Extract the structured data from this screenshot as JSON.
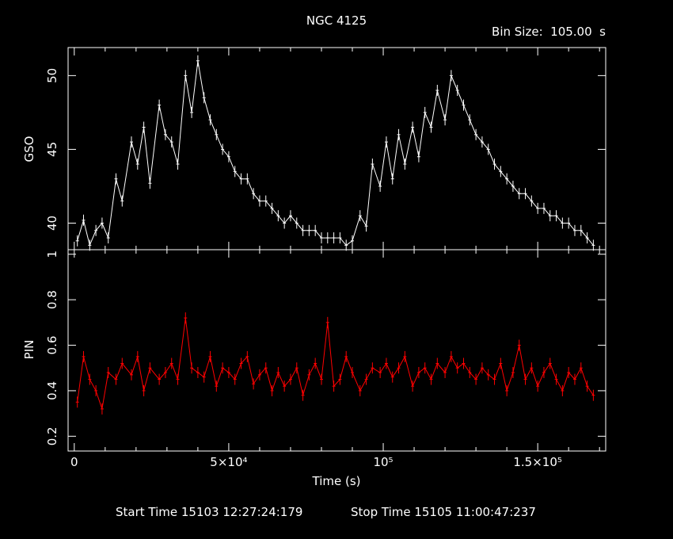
{
  "title": "NGC 4125",
  "bin_size_label": "Bin Size:  105.00  s",
  "xlabel": "Time (s)",
  "start_time_label": "Start Time 15103 12:27:24:179",
  "stop_time_label": "Stop Time 15105 11:00:47:237",
  "colors": {
    "gso": "#ffffff",
    "pin": "#ff0000",
    "axes": "#ffffff",
    "background": "#000000"
  },
  "chart_data": [
    {
      "type": "line",
      "panel": "top",
      "ylabel": "GSO",
      "xlim": [
        -2000,
        172000
      ],
      "ylim": [
        38.2,
        51.9
      ],
      "yticks": [
        40,
        45,
        50
      ],
      "yticklabels": [
        "40",
        "45",
        "50"
      ],
      "grid": false,
      "series": [
        {
          "color": "#ffffff",
          "x": [
            1000,
            3000,
            5000,
            7000,
            9000,
            11000,
            13500,
            15500,
            18500,
            20500,
            22500,
            24500,
            27500,
            29500,
            31500,
            33500,
            36000,
            38000,
            40000,
            42000,
            44000,
            46000,
            48000,
            50000,
            52000,
            54000,
            56000,
            58000,
            60000,
            62000,
            64000,
            66000,
            68000,
            70000,
            72000,
            74000,
            76000,
            78000,
            80000,
            82000,
            84000,
            86000,
            88000,
            90000,
            92500,
            94500,
            96500,
            99000,
            101000,
            103000,
            105000,
            107000,
            109500,
            111500,
            113500,
            115500,
            117500,
            120000,
            122000,
            124000,
            126000,
            128000,
            130000,
            132000,
            134000,
            136000,
            138000,
            140000,
            142000,
            144000,
            146000,
            148000,
            150000,
            152000,
            154000,
            156000,
            158000,
            160000,
            162000,
            164000,
            166000,
            168000
          ],
          "y": [
            38.8,
            40.2,
            38.5,
            39.5,
            40.0,
            39.0,
            43.0,
            41.5,
            45.5,
            44.0,
            46.5,
            42.7,
            48.0,
            46.0,
            45.5,
            44.0,
            50.0,
            47.5,
            51.0,
            48.5,
            47.0,
            46.0,
            45.0,
            44.5,
            43.5,
            43.0,
            43.0,
            42.0,
            41.5,
            41.5,
            41.0,
            40.5,
            40.0,
            40.5,
            40.0,
            39.5,
            39.5,
            39.5,
            39.0,
            39.0,
            39.0,
            39.0,
            38.5,
            38.8,
            40.5,
            39.8,
            44.0,
            42.5,
            45.5,
            43.0,
            46.0,
            44.0,
            46.5,
            44.5,
            47.5,
            46.5,
            49.0,
            47.0,
            50.0,
            49.0,
            48.0,
            47.0,
            46.0,
            45.5,
            45.0,
            44.0,
            43.5,
            43.0,
            42.5,
            42.0,
            42.0,
            41.5,
            41.0,
            41.0,
            40.5,
            40.5,
            40.0,
            40.0,
            39.5,
            39.5,
            39.0,
            38.5
          ]
        }
      ]
    },
    {
      "type": "line",
      "panel": "bottom",
      "ylabel": "PIN",
      "xlabel": "Time (s)",
      "xlim": [
        -2000,
        172000
      ],
      "ylim": [
        0.135,
        1.02
      ],
      "xticks": [
        0,
        50000,
        100000,
        150000
      ],
      "xticklabels": [
        "0",
        "5×10⁴",
        "10⁵",
        "1.5×10⁵"
      ],
      "yticks": [
        0.2,
        0.4,
        0.6,
        0.8,
        1
      ],
      "yticklabels": [
        "0.2",
        "0.4",
        "0.6",
        "0.8",
        "1"
      ],
      "grid": false,
      "series": [
        {
          "color": "#ff0000",
          "x": [
            1000,
            3000,
            5000,
            7000,
            9000,
            11000,
            13500,
            15500,
            18500,
            20500,
            22500,
            24500,
            27500,
            29500,
            31500,
            33500,
            36000,
            38000,
            40000,
            42000,
            44000,
            46000,
            48000,
            50000,
            52000,
            54000,
            56000,
            58000,
            60000,
            62000,
            64000,
            66000,
            68000,
            70000,
            72000,
            74000,
            76000,
            78000,
            80000,
            82000,
            84000,
            86000,
            88000,
            90000,
            92500,
            94500,
            96500,
            99000,
            101000,
            103000,
            105000,
            107000,
            109500,
            111500,
            113500,
            115500,
            117500,
            120000,
            122000,
            124000,
            126000,
            128000,
            130000,
            132000,
            134000,
            136000,
            138000,
            140000,
            142000,
            144000,
            146000,
            148000,
            150000,
            152000,
            154000,
            156000,
            158000,
            160000,
            162000,
            164000,
            166000,
            168000
          ],
          "y": [
            0.35,
            0.55,
            0.45,
            0.4,
            0.32,
            0.48,
            0.45,
            0.52,
            0.47,
            0.55,
            0.4,
            0.5,
            0.45,
            0.48,
            0.52,
            0.45,
            0.72,
            0.5,
            0.48,
            0.46,
            0.55,
            0.42,
            0.5,
            0.48,
            0.45,
            0.52,
            0.55,
            0.43,
            0.47,
            0.5,
            0.4,
            0.48,
            0.42,
            0.45,
            0.5,
            0.38,
            0.47,
            0.52,
            0.45,
            0.7,
            0.42,
            0.45,
            0.55,
            0.48,
            0.4,
            0.45,
            0.5,
            0.48,
            0.52,
            0.46,
            0.5,
            0.55,
            0.42,
            0.48,
            0.5,
            0.45,
            0.52,
            0.48,
            0.55,
            0.5,
            0.52,
            0.48,
            0.45,
            0.5,
            0.47,
            0.45,
            0.52,
            0.4,
            0.48,
            0.6,
            0.45,
            0.5,
            0.42,
            0.48,
            0.52,
            0.45,
            0.4,
            0.48,
            0.45,
            0.5,
            0.42,
            0.38
          ]
        }
      ]
    }
  ]
}
